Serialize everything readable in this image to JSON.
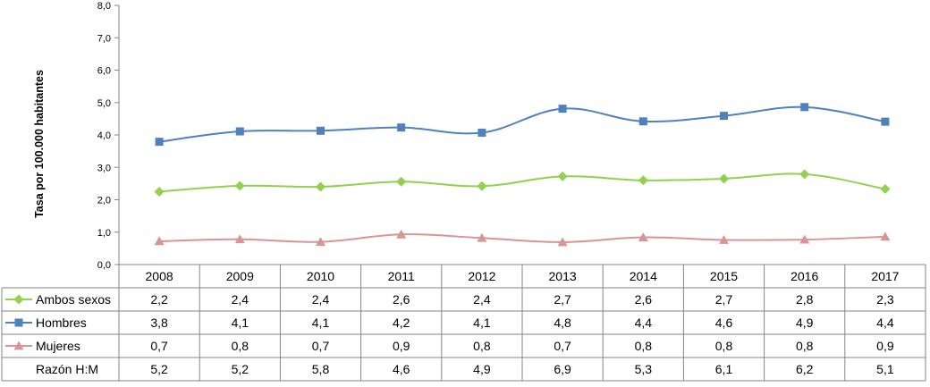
{
  "chart_data": {
    "type": "line",
    "title": "",
    "xlabel": "",
    "ylabel": "Tasa por 100.000 habitantes",
    "ylim": [
      0,
      8
    ],
    "yticks": [
      "0,0",
      "1,0",
      "2,0",
      "3,0",
      "4,0",
      "5,0",
      "6,0",
      "7,0",
      "8,0"
    ],
    "grid": false,
    "legend": "data-table-left",
    "categories": [
      "2008",
      "2009",
      "2010",
      "2011",
      "2012",
      "2013",
      "2014",
      "2015",
      "2016",
      "2017"
    ],
    "series": [
      {
        "name": "Ambos sexos",
        "color": "#92d050",
        "marker": "diamond",
        "values": [
          2.25,
          2.43,
          2.4,
          2.56,
          2.42,
          2.72,
          2.6,
          2.65,
          2.79,
          2.33
        ],
        "labels": [
          "2,2",
          "2,4",
          "2,4",
          "2,6",
          "2,4",
          "2,7",
          "2,6",
          "2,7",
          "2,8",
          "2,3"
        ]
      },
      {
        "name": "Hombres",
        "color": "#4f81bd",
        "marker": "square",
        "values": [
          3.79,
          4.11,
          4.13,
          4.23,
          4.07,
          4.81,
          4.42,
          4.59,
          4.86,
          4.41
        ],
        "labels": [
          "3,8",
          "4,1",
          "4,1",
          "4,2",
          "4,1",
          "4,8",
          "4,4",
          "4,6",
          "4,9",
          "4,4"
        ]
      },
      {
        "name": "Mujeres",
        "color": "#d99594",
        "marker": "triangle",
        "values": [
          0.72,
          0.78,
          0.7,
          0.93,
          0.82,
          0.69,
          0.84,
          0.76,
          0.77,
          0.86
        ],
        "labels": [
          "0,7",
          "0,8",
          "0,7",
          "0,9",
          "0,8",
          "0,7",
          "0,8",
          "0,8",
          "0,8",
          "0,9"
        ]
      }
    ],
    "extra_rows": [
      {
        "name": "Razón H:M",
        "labels": [
          "5,2",
          "5,2",
          "5,8",
          "4,6",
          "4,9",
          "6,9",
          "5,3",
          "6,1",
          "6,2",
          "5,1"
        ]
      }
    ]
  }
}
